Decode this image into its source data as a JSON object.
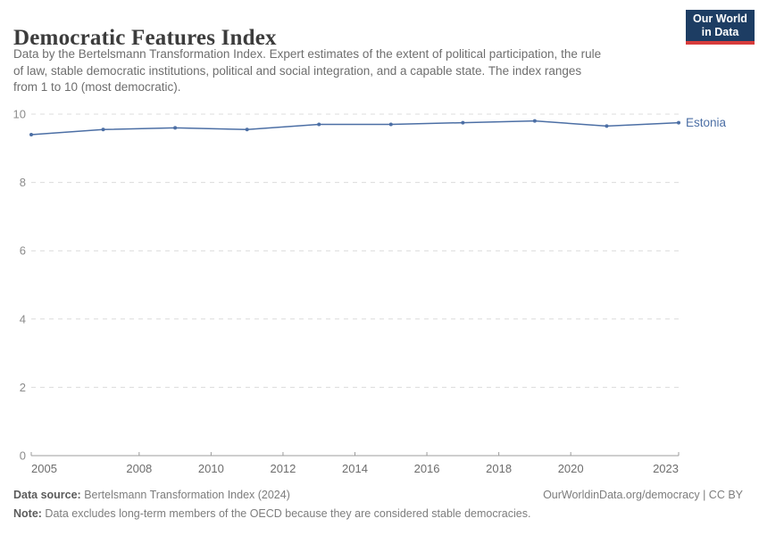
{
  "header": {
    "title": "Democratic Features Index",
    "subtitle_lines": [
      "Data by the Bertelsmann Transformation Index. Expert estimates of the extent of political participation, the rule",
      "of law, stable democratic institutions, political and social integration, and a capable state. The index ranges",
      "from 1 to 10 (most democratic)."
    ],
    "logo": {
      "line1": "Our World",
      "line2": "in Data",
      "bg_color": "#1d3d63",
      "accent_color": "#d73c3c"
    }
  },
  "chart_data": {
    "type": "line",
    "title": "Democratic Features Index",
    "x": [
      2005,
      2007,
      2009,
      2011,
      2013,
      2015,
      2017,
      2019,
      2021,
      2023
    ],
    "series": [
      {
        "name": "Estonia",
        "color": "#4c6fa5",
        "values": [
          9.4,
          9.55,
          9.6,
          9.55,
          9.7,
          9.7,
          9.75,
          9.8,
          9.65,
          9.75
        ]
      }
    ],
    "xlim": [
      2005,
      2023
    ],
    "ylim": [
      0,
      10
    ],
    "x_ticks": [
      2005,
      2008,
      2010,
      2012,
      2014,
      2016,
      2018,
      2020,
      2023
    ],
    "y_ticks": [
      0,
      2,
      4,
      6,
      8,
      10
    ],
    "grid": "horizontal-dashed",
    "legend_position": "end-of-line",
    "grid_color": "#dcdcdc",
    "axis_color": "#9c9c9c",
    "x_label_color": "#6d6d6d",
    "y_label_color": "#8c8c8c"
  },
  "footer": {
    "source_label": "Data source:",
    "source_text": " Bertelsmann Transformation Index (2024)",
    "license_text": "OurWorldinData.org/democracy | CC BY",
    "note_label": "Note:",
    "note_text": " Data excludes long-term members of the OECD because they are considered stable democracies."
  }
}
